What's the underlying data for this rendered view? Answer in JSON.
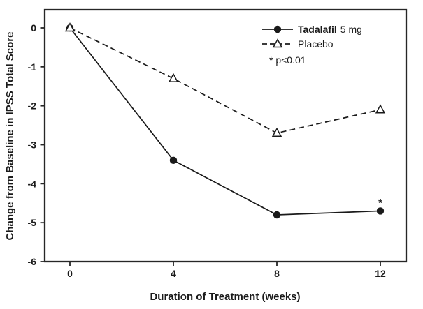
{
  "chart_data": {
    "type": "line",
    "x": [
      0,
      4,
      8,
      12
    ],
    "x_ticks": [
      0,
      4,
      8,
      12
    ],
    "y_ticks": [
      0,
      -1,
      -2,
      -3,
      -4,
      -5,
      -6
    ],
    "xlim": [
      -1,
      13
    ],
    "ylim": [
      -6,
      0.47
    ],
    "series": [
      {
        "name": "Tadalafil 5 mg",
        "values": [
          0,
          -3.4,
          -4.8,
          -4.7
        ],
        "line_style": "solid",
        "marker": "filled-circle",
        "color": "#1a1a1a"
      },
      {
        "name": "Placebo",
        "values": [
          0,
          -1.3,
          -2.7,
          -2.1
        ],
        "line_style": "dashed",
        "marker": "open-triangle",
        "color": "#1a1a1a"
      }
    ],
    "title": "",
    "xlabel": "Duration of Treatment (weeks)",
    "ylabel": "Change from Baseline in IPSS Total Score",
    "grid": false,
    "legend_position": "top-right-inside",
    "annotation": {
      "text": "*",
      "x": 12,
      "y": -4.5
    }
  },
  "legend": {
    "items": [
      {
        "label_primary": "Tadalafil",
        "label_secondary": "5 mg",
        "marker": "filled-circle-icon",
        "line": "solid"
      },
      {
        "label_primary": "Placebo",
        "label_secondary": "",
        "marker": "open-triangle-icon",
        "line": "dashed"
      }
    ],
    "note": "* p<0.01"
  },
  "colors": {
    "ink": "#1a1a1a",
    "border": "#262626",
    "background": "#ffffff"
  }
}
